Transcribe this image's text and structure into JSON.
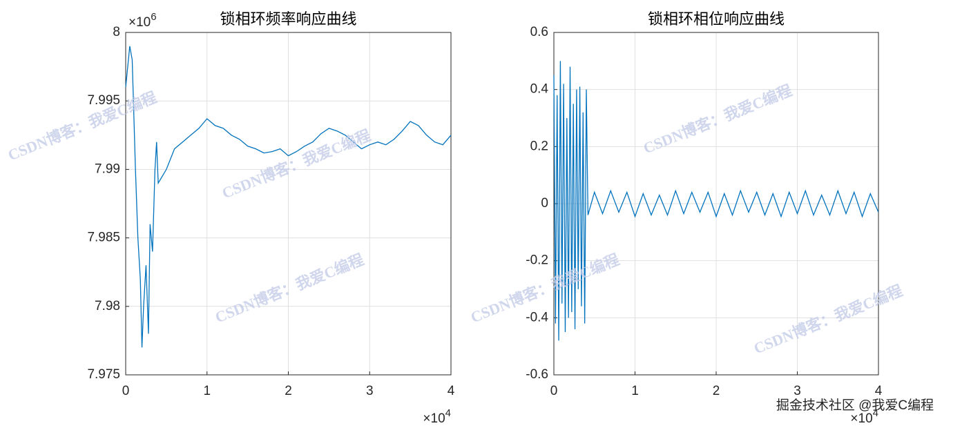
{
  "chart_data": [
    {
      "type": "line",
      "title": "锁相环频率响应曲线",
      "color": "#0072bd",
      "y_multiplier": [
        "×10",
        "6"
      ],
      "x_multiplier": [
        "×10",
        "4"
      ],
      "xlim": [
        0,
        4
      ],
      "xticks": [
        0,
        1,
        2,
        3,
        4
      ],
      "ylim": [
        7.975,
        8
      ],
      "yticks": [
        7.975,
        7.98,
        7.985,
        7.99,
        7.995,
        8
      ],
      "grid": true,
      "x": [
        0,
        0.05,
        0.08,
        0.1,
        0.12,
        0.15,
        0.18,
        0.2,
        0.22,
        0.25,
        0.28,
        0.3,
        0.33,
        0.36,
        0.38,
        0.4,
        0.5,
        0.6,
        0.7,
        0.8,
        0.9,
        1.0,
        1.1,
        1.2,
        1.3,
        1.4,
        1.5,
        1.6,
        1.7,
        1.8,
        1.9,
        2.0,
        2.1,
        2.2,
        2.3,
        2.4,
        2.5,
        2.6,
        2.7,
        2.8,
        2.9,
        3.0,
        3.1,
        3.2,
        3.3,
        3.4,
        3.5,
        3.6,
        3.7,
        3.8,
        3.9,
        4.0
      ],
      "values": [
        7.996,
        7.999,
        7.998,
        7.994,
        7.99,
        7.985,
        7.982,
        7.977,
        7.98,
        7.983,
        7.978,
        7.986,
        7.984,
        7.99,
        7.992,
        7.989,
        7.99,
        7.9915,
        7.992,
        7.9925,
        7.993,
        7.9937,
        7.9932,
        7.993,
        7.9925,
        7.9922,
        7.9917,
        7.9915,
        7.9912,
        7.9913,
        7.9915,
        7.991,
        7.9913,
        7.9917,
        7.992,
        7.9926,
        7.993,
        7.9928,
        7.9925,
        7.992,
        7.9915,
        7.9918,
        7.992,
        7.9918,
        7.9922,
        7.9928,
        7.9935,
        7.9932,
        7.9925,
        7.992,
        7.9918,
        7.9925
      ]
    },
    {
      "type": "line",
      "title": "锁相环相位响应曲线",
      "color": "#0072bd",
      "x_multiplier": [
        "×10",
        "4"
      ],
      "xlim": [
        0,
        4
      ],
      "xticks": [
        0,
        1,
        2,
        3,
        4
      ],
      "ylim": [
        -0.6,
        0.6
      ],
      "yticks": [
        -0.6,
        -0.4,
        -0.2,
        0,
        0.2,
        0.4,
        0.6
      ],
      "grid": true,
      "x": [
        0,
        0.02,
        0.04,
        0.06,
        0.08,
        0.1,
        0.12,
        0.14,
        0.16,
        0.18,
        0.2,
        0.22,
        0.24,
        0.26,
        0.28,
        0.3,
        0.32,
        0.34,
        0.36,
        0.38,
        0.4,
        0.42,
        0.5,
        0.6,
        0.7,
        0.8,
        0.9,
        1.0,
        1.1,
        1.2,
        1.3,
        1.4,
        1.5,
        1.6,
        1.7,
        1.8,
        1.9,
        2.0,
        2.1,
        2.2,
        2.3,
        2.4,
        2.5,
        2.6,
        2.7,
        2.8,
        2.9,
        3.0,
        3.1,
        3.2,
        3.3,
        3.4,
        3.5,
        3.6,
        3.7,
        3.8,
        3.9,
        4.0
      ],
      "values": [
        0.45,
        -0.42,
        0.38,
        -0.48,
        0.5,
        -0.35,
        0.42,
        -0.45,
        0.3,
        -0.4,
        0.48,
        -0.38,
        0.35,
        -0.44,
        0.4,
        -0.3,
        0.41,
        -0.36,
        0.32,
        -0.42,
        0.4,
        -0.04,
        0.04,
        -0.035,
        0.045,
        -0.03,
        0.04,
        -0.045,
        0.035,
        -0.04,
        0.03,
        -0.04,
        0.045,
        -0.035,
        0.04,
        -0.03,
        0.04,
        -0.045,
        0.035,
        -0.04,
        0.045,
        -0.03,
        0.04,
        -0.04,
        0.035,
        -0.045,
        0.04,
        -0.035,
        0.045,
        -0.04,
        0.03,
        -0.04,
        0.045,
        -0.035,
        0.04,
        -0.045,
        0.035,
        -0.03
      ]
    }
  ],
  "watermarks": [
    "CSDN博客：我爱C编程",
    "CSDN博客：我爱C编程",
    "CSDN博客：我爱C编程",
    "CSDN博客：我爱C编程",
    "CSDN博客：我爱C编程",
    "CSDN博客：我爱C编程"
  ],
  "footer": "掘金技术社区 @我爱C编程"
}
